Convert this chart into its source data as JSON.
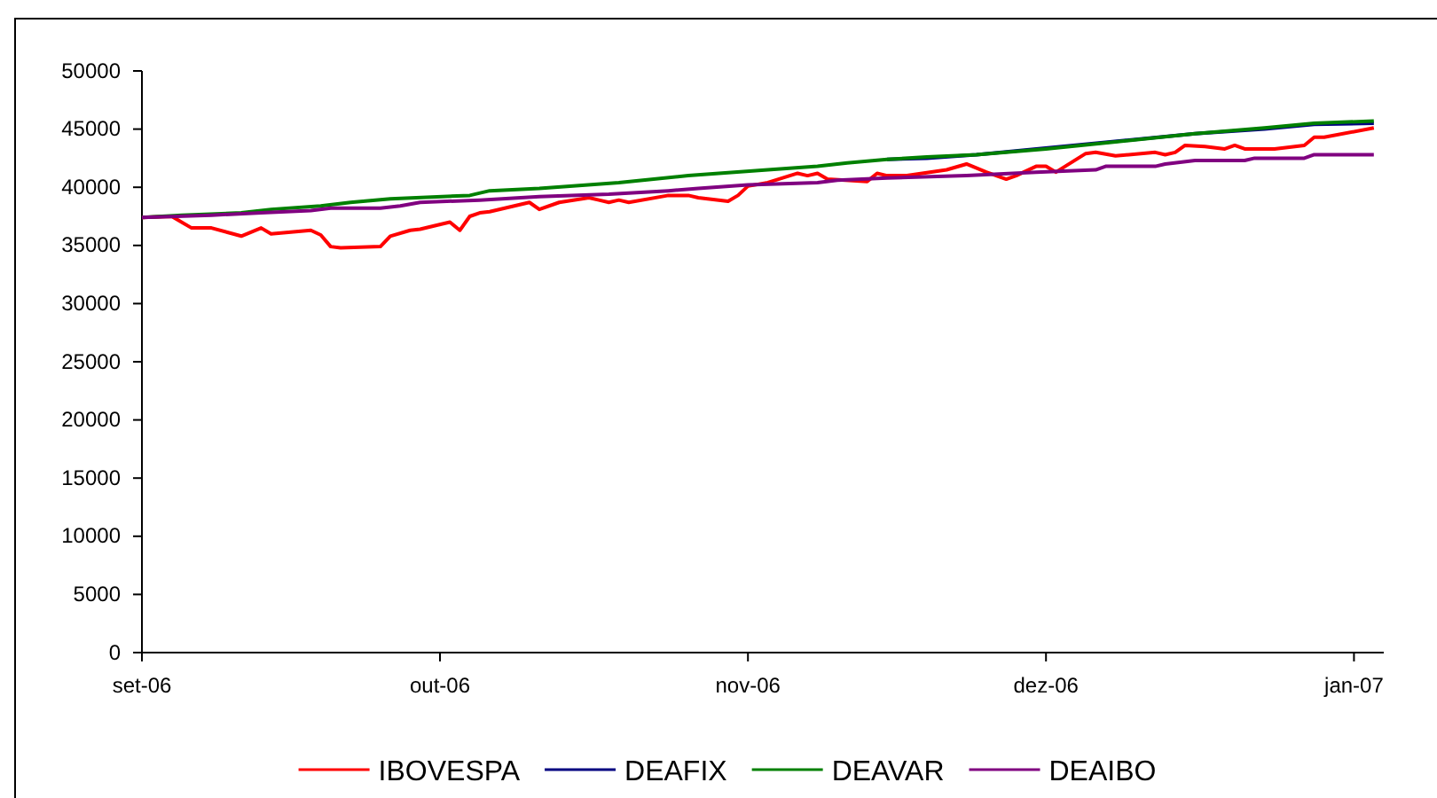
{
  "chart_data": {
    "type": "line",
    "xlim": [
      "2006-09-01",
      "2007-01-04"
    ],
    "xticks": [
      {
        "value": "2006-09-01",
        "label": "set-06"
      },
      {
        "value": "2006-10-01",
        "label": "out-06"
      },
      {
        "value": "2006-11-01",
        "label": "nov-06"
      },
      {
        "value": "2006-12-01",
        "label": "dez-06"
      },
      {
        "value": "2007-01-01",
        "label": "jan-07"
      }
    ],
    "ylim": [
      0,
      50000
    ],
    "yticks": [
      0,
      5000,
      10000,
      15000,
      20000,
      25000,
      30000,
      35000,
      40000,
      45000,
      50000
    ],
    "grid": false,
    "legend": "bottom",
    "marker": "none",
    "line_style": "solid",
    "series": [
      {
        "name": "IBOVESPA",
        "color": "#ff0000",
        "x": [
          "2006-09-01",
          "2006-09-04",
          "2006-09-06",
          "2006-09-08",
          "2006-09-11",
          "2006-09-13",
          "2006-09-14",
          "2006-09-18",
          "2006-09-19",
          "2006-09-20",
          "2006-09-21",
          "2006-09-25",
          "2006-09-26",
          "2006-09-28",
          "2006-09-29",
          "2006-10-02",
          "2006-10-03",
          "2006-10-04",
          "2006-10-05",
          "2006-10-06",
          "2006-10-10",
          "2006-10-11",
          "2006-10-13",
          "2006-10-16",
          "2006-10-17",
          "2006-10-18",
          "2006-10-19",
          "2006-10-20",
          "2006-10-24",
          "2006-10-26",
          "2006-10-27",
          "2006-10-30",
          "2006-10-31",
          "2006-11-01",
          "2006-11-03",
          "2006-11-06",
          "2006-11-07",
          "2006-11-08",
          "2006-11-09",
          "2006-11-13",
          "2006-11-14",
          "2006-11-15",
          "2006-11-17",
          "2006-11-21",
          "2006-11-23",
          "2006-11-25",
          "2006-11-27",
          "2006-11-28",
          "2006-11-30",
          "2006-12-01",
          "2006-12-02",
          "2006-12-05",
          "2006-12-06",
          "2006-12-08",
          "2006-12-12",
          "2006-12-13",
          "2006-12-14",
          "2006-12-15",
          "2006-12-17",
          "2006-12-19",
          "2006-12-20",
          "2006-12-21",
          "2006-12-24",
          "2006-12-27",
          "2006-12-28",
          "2006-12-29",
          "2007-01-03"
        ],
        "values": [
          37400,
          37500,
          36500,
          36500,
          35800,
          36500,
          36000,
          36300,
          35900,
          34900,
          34800,
          34900,
          35800,
          36300,
          36400,
          37000,
          36300,
          37500,
          37800,
          37900,
          38700,
          38100,
          38700,
          39100,
          38900,
          38700,
          38900,
          38700,
          39300,
          39300,
          39100,
          38800,
          39300,
          40100,
          40400,
          41200,
          41000,
          41200,
          40700,
          40500,
          41200,
          41000,
          41000,
          41500,
          42000,
          41300,
          40700,
          41000,
          41800,
          41800,
          41300,
          42900,
          43000,
          42700,
          43000,
          42800,
          43000,
          43600,
          43500,
          43300,
          43600,
          43300,
          43300,
          43600,
          44300,
          44300,
          45100
        ]
      },
      {
        "name": "DEAFIX",
        "color": "#000080",
        "x": [
          "2006-11-15",
          "2006-11-19",
          "2006-11-24",
          "2006-12-16",
          "2006-12-23",
          "2006-12-28",
          "2007-01-03"
        ],
        "values": [
          42400,
          42500,
          42800,
          44600,
          45000,
          45400,
          45500
        ]
      },
      {
        "name": "DEAVAR",
        "color": "#008000",
        "x": [
          "2006-09-01",
          "2006-09-05",
          "2006-09-11",
          "2006-09-14",
          "2006-09-19",
          "2006-09-22",
          "2006-09-26",
          "2006-10-04",
          "2006-10-06",
          "2006-10-11",
          "2006-10-19",
          "2006-10-26",
          "2006-11-03",
          "2006-11-08",
          "2006-11-11",
          "2006-11-15",
          "2006-11-19",
          "2006-11-24",
          "2006-12-01",
          "2006-12-08",
          "2006-12-16",
          "2006-12-23",
          "2006-12-28",
          "2007-01-03"
        ],
        "values": [
          37400,
          37600,
          37800,
          38100,
          38400,
          38700,
          39000,
          39300,
          39700,
          39900,
          40400,
          41000,
          41500,
          41800,
          42100,
          42400,
          42600,
          42800,
          43300,
          43900,
          44600,
          45100,
          45500,
          45700
        ]
      },
      {
        "name": "DEAIBO",
        "color": "#800080",
        "x": [
          "2006-09-01",
          "2006-09-08",
          "2006-09-13",
          "2006-09-18",
          "2006-09-20",
          "2006-09-25",
          "2006-09-27",
          "2006-09-29",
          "2006-10-05",
          "2006-10-11",
          "2006-10-18",
          "2006-10-24",
          "2006-10-27",
          "2006-11-01",
          "2006-11-08",
          "2006-11-10",
          "2006-11-15",
          "2006-11-23",
          "2006-11-30",
          "2006-12-06",
          "2006-12-07",
          "2006-12-12",
          "2006-12-13",
          "2006-12-16",
          "2006-12-21",
          "2006-12-22",
          "2006-12-27",
          "2006-12-28",
          "2007-01-03"
        ],
        "values": [
          37400,
          37600,
          37800,
          38000,
          38200,
          38200,
          38400,
          38700,
          38900,
          39200,
          39400,
          39700,
          39900,
          40200,
          40400,
          40600,
          40800,
          41000,
          41300,
          41500,
          41800,
          41800,
          42000,
          42300,
          42300,
          42500,
          42500,
          42800,
          42800
        ]
      }
    ]
  }
}
